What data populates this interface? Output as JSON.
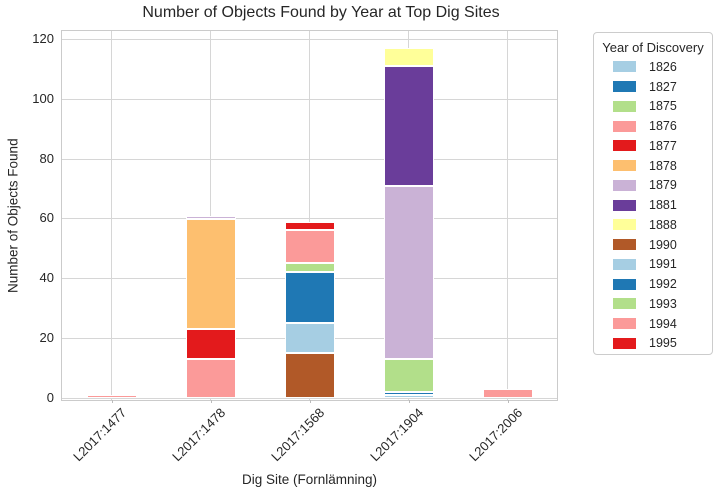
{
  "chart_data": {
    "type": "bar",
    "stacked": true,
    "title": "Number of Objects Found by Year at Top Dig Sites",
    "xlabel": "Dig Site (Fornlämning)",
    "ylabel": "Number of Objects Found",
    "ylim": [
      0,
      123
    ],
    "yticks": [
      0,
      20,
      40,
      60,
      80,
      100,
      120
    ],
    "grid": true,
    "legend_title": "Year of Discovery",
    "legend_position": "right",
    "categories": [
      "L2017:1477",
      "L2017:1478",
      "L2017:1568",
      "L2017:1904",
      "L2017:2006"
    ],
    "series": [
      {
        "name": "1826",
        "color": "#a6cee3",
        "values": [
          0,
          0,
          0,
          1,
          0
        ]
      },
      {
        "name": "1827",
        "color": "#1f78b4",
        "values": [
          0,
          0,
          0,
          1,
          0
        ]
      },
      {
        "name": "1875",
        "color": "#b2df8a",
        "values": [
          0,
          0,
          0,
          11,
          0
        ]
      },
      {
        "name": "1876",
        "color": "#fb9a99",
        "values": [
          1,
          13,
          0,
          0,
          0
        ]
      },
      {
        "name": "1877",
        "color": "#e31a1c",
        "values": [
          0,
          10,
          0,
          0,
          0
        ]
      },
      {
        "name": "1878",
        "color": "#fdbf6f",
        "values": [
          0,
          37,
          0,
          0,
          0
        ]
      },
      {
        "name": "1879",
        "color": "#cab2d6",
        "values": [
          0,
          1,
          0,
          58,
          0
        ]
      },
      {
        "name": "1881",
        "color": "#6a3d9a",
        "values": [
          0,
          0,
          0,
          40,
          0
        ]
      },
      {
        "name": "1888",
        "color": "#ffff99",
        "values": [
          0,
          0,
          0,
          6,
          0
        ]
      },
      {
        "name": "1990",
        "color": "#b15928",
        "values": [
          0,
          0,
          15,
          0,
          0
        ]
      },
      {
        "name": "1991",
        "color": "#a6cee3",
        "values": [
          0,
          0,
          10,
          0,
          0
        ]
      },
      {
        "name": "1992",
        "color": "#1f78b4",
        "values": [
          0,
          0,
          17,
          0,
          0
        ]
      },
      {
        "name": "1993",
        "color": "#b2df8a",
        "values": [
          0,
          0,
          3,
          0,
          0
        ]
      },
      {
        "name": "1994",
        "color": "#fb9a99",
        "values": [
          0,
          0,
          11,
          0,
          3
        ]
      },
      {
        "name": "1995",
        "color": "#e31a1c",
        "values": [
          0,
          0,
          3,
          0,
          0
        ]
      }
    ],
    "colors": {
      "grid": "#d6d6d6",
      "spine": "#cbcbcb",
      "text": "#262626",
      "bar_edge": "#ffffff",
      "background": "#ffffff"
    }
  }
}
